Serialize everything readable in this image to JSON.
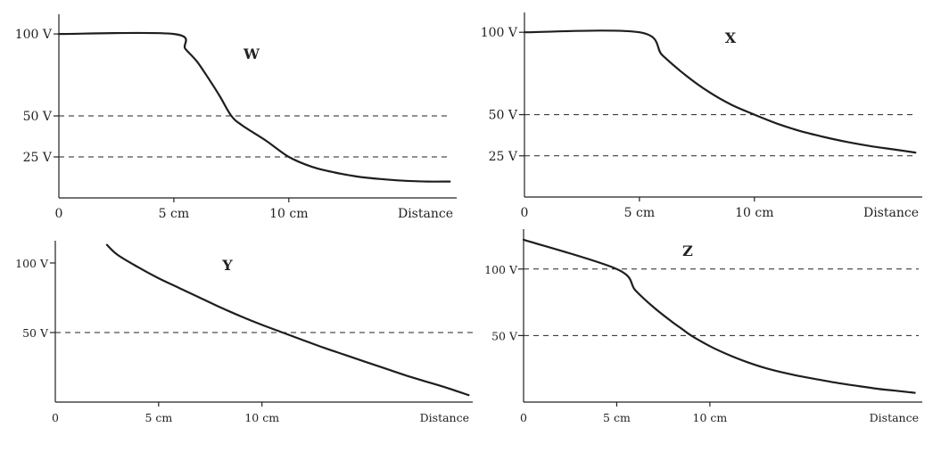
{
  "chart_data": [
    {
      "type": "line",
      "title": "W",
      "xlabel": "Distance",
      "x_ticks": [
        {
          "value": 0,
          "label": "0"
        },
        {
          "value": 5,
          "label": "5 cm"
        },
        {
          "value": 10,
          "label": "10 cm"
        }
      ],
      "y_ticks": [
        {
          "value": 100,
          "label": "100 V"
        },
        {
          "value": 50,
          "label": "50 V"
        },
        {
          "value": 25,
          "label": "25 V"
        }
      ],
      "dashed_lines": [
        50,
        25
      ],
      "series": [
        {
          "x": [
            0,
            5,
            5.5,
            6,
            6.5,
            7,
            7.5,
            8,
            9,
            10,
            11,
            12,
            13,
            14,
            15,
            16,
            17
          ],
          "y": [
            100,
            100,
            90.9,
            83.3,
            73,
            62,
            50,
            44,
            35,
            25,
            19,
            15.5,
            13,
            11.5,
            10.5,
            10,
            10
          ]
        }
      ],
      "xlim": [
        0,
        17.3
      ],
      "ylim": [
        0,
        112
      ]
    },
    {
      "type": "line",
      "title": "X",
      "xlabel": "Distance",
      "x_ticks": [
        {
          "value": 0,
          "label": "0"
        },
        {
          "value": 5,
          "label": "5 cm"
        },
        {
          "value": 10,
          "label": "10 cm"
        }
      ],
      "y_ticks": [
        {
          "value": 100,
          "label": "100 V"
        },
        {
          "value": 50,
          "label": "50 V"
        },
        {
          "value": 25,
          "label": "25 V"
        }
      ],
      "dashed_lines": [
        50,
        25
      ],
      "series": [
        {
          "x": [
            0,
            5,
            6,
            7,
            8,
            9,
            10,
            11,
            12,
            13,
            14,
            15,
            16,
            17
          ],
          "y": [
            100,
            100,
            86,
            74,
            64,
            56,
            50,
            44.5,
            40,
            36.5,
            33.5,
            31,
            29,
            27
          ]
        }
      ],
      "xlim": [
        0,
        17.3
      ],
      "ylim": [
        0,
        112
      ]
    },
    {
      "type": "line",
      "title": "Y",
      "xlabel": "Distance",
      "x_ticks": [
        {
          "value": 0,
          "label": "0"
        },
        {
          "value": 5,
          "label": "5 cm"
        },
        {
          "value": 10,
          "label": "10 cm"
        }
      ],
      "y_ticks": [
        {
          "value": 100,
          "label": "100 V"
        },
        {
          "value": 50,
          "label": "50 V"
        }
      ],
      "dashed_lines": [
        50
      ],
      "series": [
        {
          "x": [
            2.5,
            3,
            4,
            5,
            6,
            7,
            8,
            9,
            10,
            11,
            12,
            13,
            14,
            15,
            16,
            17,
            18,
            19,
            20
          ],
          "y": [
            113,
            106,
            97,
            89,
            82,
            75,
            68,
            61.5,
            55.5,
            50,
            44.5,
            39,
            34,
            29,
            24,
            19,
            14.5,
            10,
            5
          ]
        }
      ],
      "xlim": [
        0,
        20.2
      ],
      "ylim": [
        0,
        116
      ]
    },
    {
      "type": "line",
      "title": "Z",
      "xlabel": "Distance",
      "x_ticks": [
        {
          "value": 0,
          "label": "0"
        },
        {
          "value": 5,
          "label": "5 cm"
        },
        {
          "value": 10,
          "label": "10 cm"
        }
      ],
      "y_ticks": [
        {
          "value": 100,
          "label": "100 V"
        },
        {
          "value": 50,
          "label": "50 V"
        }
      ],
      "dashed_lines": [
        100,
        50
      ],
      "series": [
        {
          "x": [
            0,
            5,
            6,
            7,
            8,
            8.5,
            9,
            10,
            11,
            12,
            13,
            14,
            15,
            16,
            17,
            18,
            19,
            20,
            21
          ],
          "y": [
            122,
            100,
            84,
            71,
            60,
            55,
            50,
            42,
            35.5,
            30,
            25.5,
            22,
            19,
            16.5,
            14,
            12,
            10,
            8.5,
            7
          ]
        }
      ],
      "xlim": [
        0,
        21.4
      ],
      "ylim": [
        0,
        130
      ]
    }
  ]
}
